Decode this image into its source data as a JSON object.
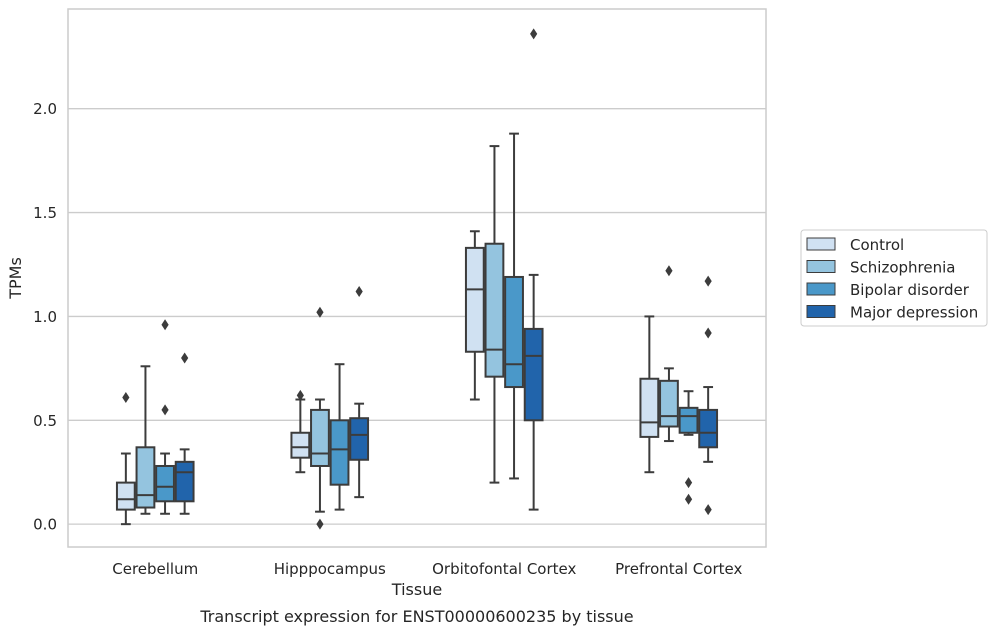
{
  "chart_data": {
    "type": "boxplot",
    "title": "Transcript expression for ENST00000600235 by tissue",
    "xlabel": "Tissue",
    "ylabel": "TPMs",
    "ylim": [
      -0.11,
      2.48
    ],
    "yticks": [
      0.0,
      0.5,
      1.0,
      1.5,
      2.0
    ],
    "ytick_labels": [
      "0.0",
      "0.5",
      "1.0",
      "1.5",
      "2.0"
    ],
    "grid": "horizontal",
    "legend_position": "right",
    "categories": [
      "Cerebellum",
      "Hipppocampus",
      "Orbitofontal Cortex",
      "Prefrontal Cortex"
    ],
    "series": [
      {
        "name": "Control",
        "color": "#d0e1f2",
        "boxes": [
          {
            "whislo": 0.0,
            "q1": 0.07,
            "med": 0.12,
            "q3": 0.2,
            "whishi": 0.34,
            "fliers": [
              0.61
            ]
          },
          {
            "whislo": 0.25,
            "q1": 0.32,
            "med": 0.37,
            "q3": 0.44,
            "whishi": 0.6,
            "fliers": [
              0.62
            ]
          },
          {
            "whislo": 0.6,
            "q1": 0.83,
            "med": 1.13,
            "q3": 1.33,
            "whishi": 1.41,
            "fliers": []
          },
          {
            "whislo": 0.25,
            "q1": 0.42,
            "med": 0.49,
            "q3": 0.7,
            "whishi": 1.0,
            "fliers": []
          }
        ]
      },
      {
        "name": "Schizophrenia",
        "color": "#94c4df",
        "boxes": [
          {
            "whislo": 0.05,
            "q1": 0.08,
            "med": 0.14,
            "q3": 0.37,
            "whishi": 0.76,
            "fliers": []
          },
          {
            "whislo": 0.06,
            "q1": 0.28,
            "med": 0.34,
            "q3": 0.55,
            "whishi": 0.6,
            "fliers": [
              1.02,
              0.0
            ]
          },
          {
            "whislo": 0.2,
            "q1": 0.71,
            "med": 0.84,
            "q3": 1.35,
            "whishi": 1.82,
            "fliers": []
          },
          {
            "whislo": 0.4,
            "q1": 0.47,
            "med": 0.52,
            "q3": 0.69,
            "whishi": 0.75,
            "fliers": [
              1.22
            ]
          }
        ]
      },
      {
        "name": "Bipolar disorder",
        "color": "#4a98c9",
        "boxes": [
          {
            "whislo": 0.05,
            "q1": 0.11,
            "med": 0.18,
            "q3": 0.28,
            "whishi": 0.34,
            "fliers": [
              0.96,
              0.55
            ]
          },
          {
            "whislo": 0.07,
            "q1": 0.19,
            "med": 0.36,
            "q3": 0.5,
            "whishi": 0.77,
            "fliers": []
          },
          {
            "whislo": 0.22,
            "q1": 0.66,
            "med": 0.77,
            "q3": 1.19,
            "whishi": 1.88,
            "fliers": []
          },
          {
            "whislo": 0.43,
            "q1": 0.44,
            "med": 0.52,
            "q3": 0.56,
            "whishi": 0.64,
            "fliers": [
              0.2,
              0.12
            ]
          }
        ]
      },
      {
        "name": "Major depression",
        "color": "#2164ab",
        "boxes": [
          {
            "whislo": 0.05,
            "q1": 0.11,
            "med": 0.25,
            "q3": 0.3,
            "whishi": 0.36,
            "fliers": [
              0.8
            ]
          },
          {
            "whislo": 0.13,
            "q1": 0.31,
            "med": 0.43,
            "q3": 0.51,
            "whishi": 0.58,
            "fliers": [
              1.12
            ]
          },
          {
            "whislo": 0.07,
            "q1": 0.5,
            "med": 0.81,
            "q3": 0.94,
            "whishi": 1.2,
            "fliers": [
              2.36
            ]
          },
          {
            "whislo": 0.3,
            "q1": 0.37,
            "med": 0.44,
            "q3": 0.55,
            "whishi": 0.66,
            "fliers": [
              1.17,
              0.92,
              0.07
            ]
          }
        ]
      }
    ]
  }
}
